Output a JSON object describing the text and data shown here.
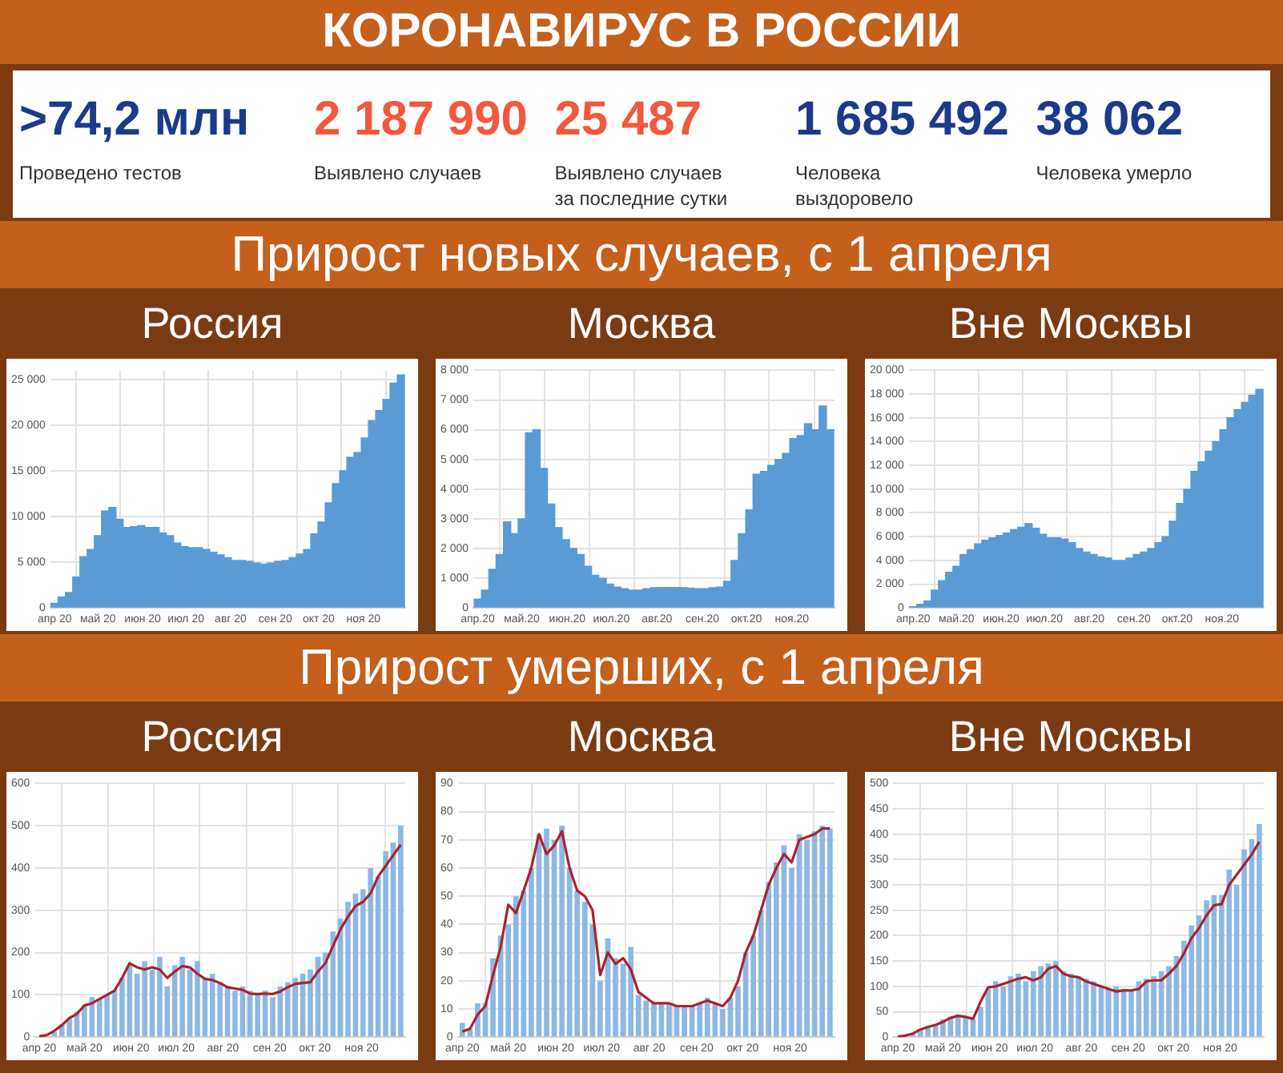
{
  "chart_data": [
    {
      "type": "other",
      "title": "КОРОНАВИРУС В РОССИИ",
      "annotations": [
        ">74,2 млн",
        "Проведено тестов",
        "2 187 990",
        "Выявлено случаев",
        "25 487",
        "Выявлено случаев за последние сутки",
        "1 685 492",
        "Человека выздоровело",
        "38 062",
        "Человека умерло"
      ]
    },
    {
      "type": "other",
      "title": "Прирост новых случаев, с 1 апреля"
    },
    {
      "type": "bar",
      "title": "Россия",
      "color": "#5b9bd5",
      "grid": true,
      "x": [
        "2020-04-01",
        "2020-04-06",
        "2020-04-11",
        "2020-04-16",
        "2020-04-21",
        "2020-04-26",
        "2020-05-01",
        "2020-05-06",
        "2020-05-11",
        "2020-05-16",
        "2020-05-21",
        "2020-05-26",
        "2020-05-31",
        "2020-06-05",
        "2020-06-10",
        "2020-06-15",
        "2020-06-20",
        "2020-06-25",
        "2020-06-30",
        "2020-07-05",
        "2020-07-10",
        "2020-07-15",
        "2020-07-20",
        "2020-07-25",
        "2020-07-30",
        "2020-08-04",
        "2020-08-09",
        "2020-08-14",
        "2020-08-19",
        "2020-08-24",
        "2020-08-29",
        "2020-09-03",
        "2020-09-08",
        "2020-09-13",
        "2020-09-18",
        "2020-09-23",
        "2020-09-28",
        "2020-10-03",
        "2020-10-08",
        "2020-10-13",
        "2020-10-18",
        "2020-10-23",
        "2020-10-28",
        "2020-11-02",
        "2020-11-07",
        "2020-11-12",
        "2020-11-17",
        "2020-11-22",
        "2020-11-27"
      ],
      "values": [
        500,
        1200,
        1700,
        3400,
        5600,
        6400,
        7900,
        10600,
        11000,
        9700,
        8800,
        8900,
        9000,
        8800,
        8800,
        8200,
        7900,
        7100,
        6700,
        6600,
        6600,
        6400,
        6100,
        5800,
        5500,
        5200,
        5200,
        5100,
        4900,
        4800,
        4900,
        5100,
        5200,
        5500,
        5900,
        6400,
        8100,
        9400,
        11500,
        13600,
        15000,
        16500,
        17000,
        18600,
        20500,
        21600,
        22800,
        24600,
        25500
      ],
      "xlim": [
        "2020-03-29",
        "2020-11-30"
      ],
      "xticks": [
        {
          "value": "2020-04-01",
          "label": "апр 20"
        },
        {
          "value": "2020-05-01",
          "label": "май 20"
        },
        {
          "value": "2020-06-01",
          "label": "июн 20"
        },
        {
          "value": "2020-07-01",
          "label": "июл 20"
        },
        {
          "value": "2020-08-01",
          "label": "авг 20"
        },
        {
          "value": "2020-09-01",
          "label": "сен 20"
        },
        {
          "value": "2020-10-01",
          "label": "окт 20"
        },
        {
          "value": "2020-11-01",
          "label": "ноя 20"
        }
      ],
      "ylim": [
        0,
        26000
      ],
      "yticks": [
        0,
        {
          "value": 5000,
          "label": "5 000"
        },
        {
          "value": 10000,
          "label": "10 000"
        },
        {
          "value": 15000,
          "label": "15 000"
        },
        {
          "value": 20000,
          "label": "20 000"
        },
        {
          "value": 25000,
          "label": "25 000"
        }
      ]
    },
    {
      "type": "bar",
      "title": "Москва",
      "color": "#5b9bd5",
      "grid": true,
      "x": [
        "2020-04-01",
        "2020-04-06",
        "2020-04-11",
        "2020-04-16",
        "2020-04-21",
        "2020-04-26",
        "2020-05-01",
        "2020-05-06",
        "2020-05-11",
        "2020-05-16",
        "2020-05-21",
        "2020-05-26",
        "2020-05-31",
        "2020-06-05",
        "2020-06-10",
        "2020-06-15",
        "2020-06-20",
        "2020-06-25",
        "2020-06-30",
        "2020-07-05",
        "2020-07-10",
        "2020-07-15",
        "2020-07-20",
        "2020-07-25",
        "2020-07-30",
        "2020-08-04",
        "2020-08-09",
        "2020-08-14",
        "2020-08-19",
        "2020-08-24",
        "2020-08-29",
        "2020-09-03",
        "2020-09-08",
        "2020-09-13",
        "2020-09-18",
        "2020-09-23",
        "2020-09-28",
        "2020-10-03",
        "2020-10-08",
        "2020-10-13",
        "2020-10-18",
        "2020-10-23",
        "2020-10-28",
        "2020-11-02",
        "2020-11-07",
        "2020-11-12",
        "2020-11-17",
        "2020-11-22",
        "2020-11-27"
      ],
      "values": [
        300,
        600,
        1300,
        1800,
        2900,
        2500,
        3000,
        5900,
        6000,
        4700,
        3500,
        2700,
        2300,
        2000,
        1800,
        1400,
        1100,
        1000,
        800,
        700,
        650,
        600,
        600,
        650,
        680,
        690,
        690,
        690,
        680,
        670,
        650,
        650,
        680,
        700,
        900,
        1600,
        2500,
        3300,
        4500,
        4600,
        4800,
        5000,
        5200,
        5700,
        5800,
        6200,
        6000,
        6800,
        6000
      ],
      "xlim": [
        "2020-03-29",
        "2020-11-30"
      ],
      "xticks": [
        {
          "value": "2020-04-01",
          "label": "апр.20"
        },
        {
          "value": "2020-05-01",
          "label": "май.20"
        },
        {
          "value": "2020-06-01",
          "label": "июн.20"
        },
        {
          "value": "2020-07-01",
          "label": "июл.20"
        },
        {
          "value": "2020-08-01",
          "label": "авг.20"
        },
        {
          "value": "2020-09-01",
          "label": "сен.20"
        },
        {
          "value": "2020-10-01",
          "label": "окт.20"
        },
        {
          "value": "2020-11-01",
          "label": "ноя.20"
        }
      ],
      "ylim": [
        0,
        8000
      ],
      "yticks": [
        0,
        {
          "value": 1000,
          "label": "1 000"
        },
        {
          "value": 2000,
          "label": "2 000"
        },
        {
          "value": 3000,
          "label": "3 000"
        },
        {
          "value": 4000,
          "label": "4 000"
        },
        {
          "value": 5000,
          "label": "5 000"
        },
        {
          "value": 6000,
          "label": "6 000"
        },
        {
          "value": 7000,
          "label": "7 000"
        },
        {
          "value": 8000,
          "label": "8 000"
        }
      ]
    },
    {
      "type": "bar",
      "title": "Вне Москвы",
      "color": "#5b9bd5",
      "grid": true,
      "x": [
        "2020-04-01",
        "2020-04-06",
        "2020-04-11",
        "2020-04-16",
        "2020-04-21",
        "2020-04-26",
        "2020-05-01",
        "2020-05-06",
        "2020-05-11",
        "2020-05-16",
        "2020-05-21",
        "2020-05-26",
        "2020-05-31",
        "2020-06-05",
        "2020-06-10",
        "2020-06-15",
        "2020-06-20",
        "2020-06-25",
        "2020-06-30",
        "2020-07-05",
        "2020-07-10",
        "2020-07-15",
        "2020-07-20",
        "2020-07-25",
        "2020-07-30",
        "2020-08-04",
        "2020-08-09",
        "2020-08-14",
        "2020-08-19",
        "2020-08-24",
        "2020-08-29",
        "2020-09-03",
        "2020-09-08",
        "2020-09-13",
        "2020-09-18",
        "2020-09-23",
        "2020-09-28",
        "2020-10-03",
        "2020-10-08",
        "2020-10-13",
        "2020-10-18",
        "2020-10-23",
        "2020-10-28",
        "2020-11-02",
        "2020-11-07",
        "2020-11-12",
        "2020-11-17",
        "2020-11-22",
        "2020-11-27"
      ],
      "values": [
        100,
        300,
        600,
        1500,
        2300,
        3000,
        3500,
        4500,
        4900,
        5400,
        5700,
        5900,
        6100,
        6300,
        6600,
        6800,
        7100,
        6700,
        6200,
        5900,
        5900,
        5800,
        5500,
        5000,
        4700,
        4500,
        4300,
        4200,
        4000,
        4000,
        4200,
        4500,
        4700,
        5000,
        5500,
        6000,
        7300,
        8800,
        10000,
        11500,
        12300,
        13200,
        14000,
        15000,
        16000,
        16700,
        17300,
        17900,
        18400
      ],
      "xlim": [
        "2020-03-29",
        "2020-11-30"
      ],
      "xticks": [
        {
          "value": "2020-04-01",
          "label": "апр.20"
        },
        {
          "value": "2020-05-01",
          "label": "май.20"
        },
        {
          "value": "2020-06-01",
          "label": "июн.20"
        },
        {
          "value": "2020-07-01",
          "label": "июл.20"
        },
        {
          "value": "2020-08-01",
          "label": "авг.20"
        },
        {
          "value": "2020-09-01",
          "label": "сен.20"
        },
        {
          "value": "2020-10-01",
          "label": "окт.20"
        },
        {
          "value": "2020-11-01",
          "label": "ноя.20"
        }
      ],
      "ylim": [
        0,
        20000
      ],
      "yticks": [
        0,
        {
          "value": 2000,
          "label": "2 000"
        },
        {
          "value": 4000,
          "label": "4 000"
        },
        {
          "value": 6000,
          "label": "6 000"
        },
        {
          "value": 8000,
          "label": "8 000"
        },
        {
          "value": 10000,
          "label": "10 000"
        },
        {
          "value": 12000,
          "label": "12 000"
        },
        {
          "value": 14000,
          "label": "14 000"
        },
        {
          "value": 16000,
          "label": "16 000"
        },
        {
          "value": 18000,
          "label": "18 000"
        },
        {
          "value": 20000,
          "label": "20 000"
        }
      ]
    },
    {
      "type": "other",
      "title": "Прирост умерших, с 1 апреля"
    },
    {
      "type": "bar",
      "title": "Россия",
      "grid": true,
      "x": [
        "2020-04-01",
        "2020-04-06",
        "2020-04-11",
        "2020-04-16",
        "2020-04-21",
        "2020-04-26",
        "2020-05-01",
        "2020-05-06",
        "2020-05-11",
        "2020-05-16",
        "2020-05-21",
        "2020-05-26",
        "2020-05-31",
        "2020-06-05",
        "2020-06-10",
        "2020-06-15",
        "2020-06-20",
        "2020-06-25",
        "2020-06-30",
        "2020-07-05",
        "2020-07-10",
        "2020-07-15",
        "2020-07-20",
        "2020-07-25",
        "2020-07-30",
        "2020-08-04",
        "2020-08-09",
        "2020-08-14",
        "2020-08-19",
        "2020-08-24",
        "2020-08-29",
        "2020-09-03",
        "2020-09-08",
        "2020-09-13",
        "2020-09-18",
        "2020-09-23",
        "2020-09-28",
        "2020-10-03",
        "2020-10-08",
        "2020-10-13",
        "2020-10-18",
        "2020-10-23",
        "2020-10-28",
        "2020-11-02",
        "2020-11-07",
        "2020-11-12",
        "2020-11-17",
        "2020-11-22",
        "2020-11-27"
      ],
      "series": [
        {
          "type": "bar",
          "color": "#8db8e3",
          "values": [
            2,
            null,
            12,
            30,
            45,
            60,
            75,
            95,
            90,
            100,
            110,
            140,
            170,
            150,
            180,
            160,
            190,
            120,
            170,
            190,
            160,
            180,
            140,
            150,
            130,
            120,
            110,
            120,
            110,
            100,
            110,
            95,
            120,
            130,
            140,
            150,
            160,
            190,
            200,
            250,
            280,
            320,
            340,
            350,
            400,
            380,
            440,
            460,
            500
          ]
        },
        {
          "type": "line",
          "color": "#a8232e",
          "values": [
            2,
            5,
            15,
            28,
            45,
            55,
            75,
            80,
            90,
            100,
            110,
            140,
            175,
            165,
            160,
            165,
            160,
            140,
            155,
            168,
            165,
            150,
            138,
            135,
            128,
            118,
            115,
            112,
            103,
            102,
            103,
            102,
            108,
            118,
            126,
            128,
            130,
            155,
            175,
            215,
            255,
            285,
            310,
            320,
            340,
            380,
            405,
            430,
            455
          ]
        }
      ],
      "xlim": [
        "2020-03-29",
        "2020-11-30"
      ],
      "xticks": [
        {
          "value": "2020-04-01",
          "label": "апр 20"
        },
        {
          "value": "2020-05-01",
          "label": "май 20"
        },
        {
          "value": "2020-06-01",
          "label": "июн 20"
        },
        {
          "value": "2020-07-01",
          "label": "июл 20"
        },
        {
          "value": "2020-08-01",
          "label": "авг 20"
        },
        {
          "value": "2020-09-01",
          "label": "сен 20"
        },
        {
          "value": "2020-10-01",
          "label": "окт 20"
        },
        {
          "value": "2020-11-01",
          "label": "ноя 20"
        }
      ],
      "ylim": [
        0,
        600
      ],
      "yticks": [
        0,
        100,
        200,
        300,
        400,
        500,
        600
      ]
    },
    {
      "type": "bar",
      "title": "Москва",
      "grid": true,
      "x": [
        "2020-04-01",
        "2020-04-06",
        "2020-04-11",
        "2020-04-16",
        "2020-04-21",
        "2020-04-26",
        "2020-05-01",
        "2020-05-06",
        "2020-05-11",
        "2020-05-16",
        "2020-05-21",
        "2020-05-26",
        "2020-05-31",
        "2020-06-05",
        "2020-06-10",
        "2020-06-15",
        "2020-06-20",
        "2020-06-25",
        "2020-06-30",
        "2020-07-05",
        "2020-07-10",
        "2020-07-15",
        "2020-07-20",
        "2020-07-25",
        "2020-07-30",
        "2020-08-04",
        "2020-08-09",
        "2020-08-14",
        "2020-08-19",
        "2020-08-24",
        "2020-08-29",
        "2020-09-03",
        "2020-09-08",
        "2020-09-13",
        "2020-09-18",
        "2020-09-23",
        "2020-09-28",
        "2020-10-03",
        "2020-10-08",
        "2020-10-13",
        "2020-10-18",
        "2020-10-23",
        "2020-10-28",
        "2020-11-02",
        "2020-11-07",
        "2020-11-12",
        "2020-11-17",
        "2020-11-22",
        "2020-11-27"
      ],
      "series": [
        {
          "type": "bar",
          "color": "#8db8e3",
          "values": [
            5,
            3,
            12,
            12,
            28,
            36,
            40,
            50,
            52,
            60,
            72,
            74,
            70,
            75,
            60,
            52,
            48,
            40,
            20,
            35,
            28,
            26,
            32,
            15,
            13,
            12,
            12,
            12,
            11,
            11,
            11,
            12,
            14,
            12,
            10,
            14,
            18,
            30,
            36,
            45,
            55,
            62,
            68,
            60,
            72,
            70,
            73,
            75,
            74
          ]
        },
        {
          "type": "line",
          "color": "#a8232e",
          "values": [
            2,
            3,
            8,
            11,
            22,
            32,
            47,
            44,
            52,
            60,
            72,
            65,
            68,
            73,
            60,
            52,
            50,
            45,
            22,
            30,
            26,
            28,
            24,
            16,
            14,
            12,
            12,
            12,
            11,
            11,
            11,
            12,
            13,
            12,
            11,
            14,
            20,
            30,
            36,
            45,
            54,
            60,
            65,
            62,
            70,
            71,
            72,
            74,
            74
          ]
        }
      ],
      "xlim": [
        "2020-03-29",
        "2020-11-30"
      ],
      "xticks": [
        {
          "value": "2020-04-01",
          "label": "апр 20"
        },
        {
          "value": "2020-05-01",
          "label": "май 20"
        },
        {
          "value": "2020-06-01",
          "label": "июн 20"
        },
        {
          "value": "2020-07-01",
          "label": "июл 20"
        },
        {
          "value": "2020-08-01",
          "label": "авг 20"
        },
        {
          "value": "2020-09-01",
          "label": "сен 20"
        },
        {
          "value": "2020-10-01",
          "label": "окт 20"
        },
        {
          "value": "2020-11-01",
          "label": "ноя 20"
        }
      ],
      "ylim": [
        0,
        90
      ],
      "yticks": [
        0,
        10,
        20,
        30,
        40,
        50,
        60,
        70,
        80,
        90
      ]
    },
    {
      "type": "bar",
      "title": "Вне Москвы",
      "grid": true,
      "x": [
        "2020-04-01",
        "2020-04-06",
        "2020-04-11",
        "2020-04-16",
        "2020-04-21",
        "2020-04-26",
        "2020-05-01",
        "2020-05-06",
        "2020-05-11",
        "2020-05-16",
        "2020-05-21",
        "2020-05-26",
        "2020-05-31",
        "2020-06-05",
        "2020-06-10",
        "2020-06-15",
        "2020-06-20",
        "2020-06-25",
        "2020-06-30",
        "2020-07-05",
        "2020-07-10",
        "2020-07-15",
        "2020-07-20",
        "2020-07-25",
        "2020-07-30",
        "2020-08-04",
        "2020-08-09",
        "2020-08-14",
        "2020-08-19",
        "2020-08-24",
        "2020-08-29",
        "2020-09-03",
        "2020-09-08",
        "2020-09-13",
        "2020-09-18",
        "2020-09-23",
        "2020-09-28",
        "2020-10-03",
        "2020-10-08",
        "2020-10-13",
        "2020-10-18",
        "2020-10-23",
        "2020-10-28",
        "2020-11-02",
        "2020-11-07",
        "2020-11-12",
        "2020-11-17",
        "2020-11-22",
        "2020-11-27"
      ],
      "series": [
        {
          "type": "bar",
          "color": "#8db8e3",
          "values": [
            null,
            null,
            5,
            15,
            22,
            25,
            35,
            40,
            45,
            40,
            35,
            60,
            95,
            110,
            100,
            120,
            125,
            110,
            130,
            140,
            145,
            150,
            130,
            125,
            120,
            115,
            110,
            100,
            95,
            100,
            95,
            90,
            110,
            115,
            120,
            130,
            140,
            160,
            190,
            220,
            240,
            270,
            280,
            280,
            330,
            300,
            370,
            390,
            420
          ]
        },
        {
          "type": "line",
          "color": "#a8232e",
          "values": [
            1,
            3,
            7,
            15,
            20,
            24,
            30,
            38,
            42,
            40,
            36,
            70,
            98,
            100,
            105,
            110,
            115,
            118,
            112,
            118,
            135,
            140,
            125,
            120,
            118,
            110,
            105,
            100,
            95,
            90,
            92,
            92,
            95,
            110,
            112,
            112,
            125,
            140,
            165,
            195,
            215,
            240,
            260,
            262,
            300,
            320,
            340,
            360,
            385
          ]
        }
      ],
      "xlim": [
        "2020-03-29",
        "2020-11-30"
      ],
      "xticks": [
        {
          "value": "2020-04-01",
          "label": "апр 20"
        },
        {
          "value": "2020-05-01",
          "label": "май 20"
        },
        {
          "value": "2020-06-01",
          "label": "июн 20"
        },
        {
          "value": "2020-07-01",
          "label": "июл 20"
        },
        {
          "value": "2020-08-01",
          "label": "авг 20"
        },
        {
          "value": "2020-09-01",
          "label": "сен 20"
        },
        {
          "value": "2020-10-01",
          "label": "окт 20"
        },
        {
          "value": "2020-11-01",
          "label": "ноя 20"
        }
      ],
      "ylim": [
        0,
        500
      ],
      "yticks": [
        0,
        50,
        100,
        150,
        200,
        250,
        300,
        350,
        400,
        450,
        500
      ]
    }
  ]
}
